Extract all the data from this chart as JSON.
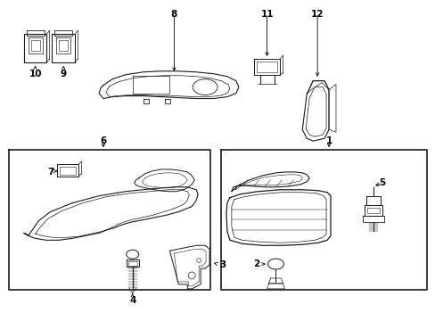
{
  "bg_color": "#ffffff",
  "line_color": "#1a1a1a",
  "fig_width": 4.89,
  "fig_height": 3.6,
  "dpi": 100,
  "label_fontsize": 7.5,
  "lw": 0.75
}
